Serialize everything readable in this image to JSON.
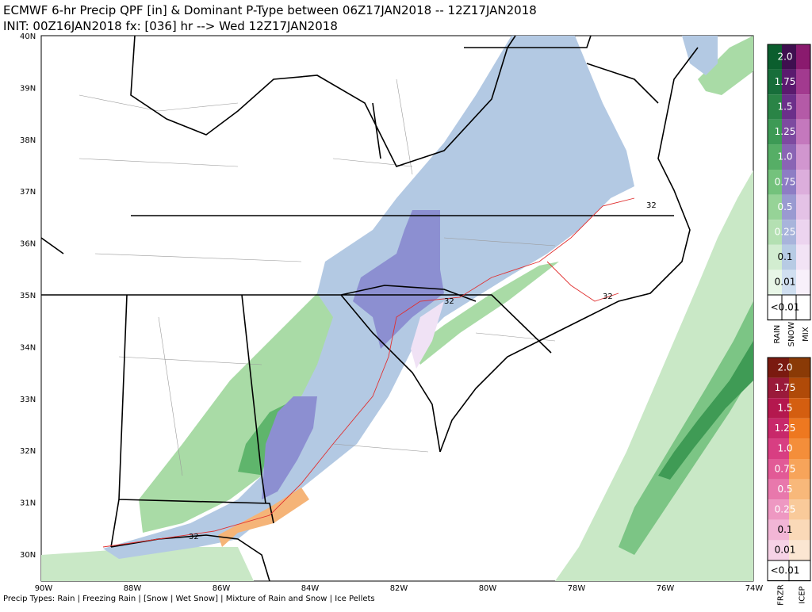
{
  "header": {
    "line1": "ECMWF 6-hr Precip QPF [in] & Dominant P-Type between 06Z17JAN2018 -- 12Z17JAN2018",
    "line2": "INIT: 00Z16JAN2018 fx: [036] hr --> Wed 12Z17JAN2018"
  },
  "map": {
    "lat_labels": [
      "40N",
      "39N",
      "38N",
      "37N",
      "36N",
      "35N",
      "34N",
      "33N",
      "32N",
      "31N",
      "30N"
    ],
    "lon_labels": [
      "90W",
      "88W",
      "86W",
      "84W",
      "82W",
      "80W",
      "78W",
      "76W",
      "74W"
    ],
    "contour_labels": [
      "32",
      "32",
      "32",
      "32"
    ]
  },
  "legend_top": {
    "values": [
      "2.0",
      "1.75",
      "1.5",
      "1.25",
      "1.0",
      "0.75",
      "0.5",
      "0.25",
      "0.1",
      "0.01",
      "<0.01"
    ],
    "columns": [
      "RAIN",
      "SNOW",
      "MIX"
    ]
  },
  "legend_bottom": {
    "values": [
      "2.0",
      "1.75",
      "1.5",
      "1.25",
      "1.0",
      "0.75",
      "0.5",
      "0.25",
      "0.1",
      "0.01",
      "<0.01"
    ],
    "columns": [
      "FRZR",
      "ICEP"
    ]
  },
  "footer": "Precip Types: Rain | Freezing Rain | [Snow | Wet Snow] | Mixture of Rain and Snow | Ice Pellets"
}
